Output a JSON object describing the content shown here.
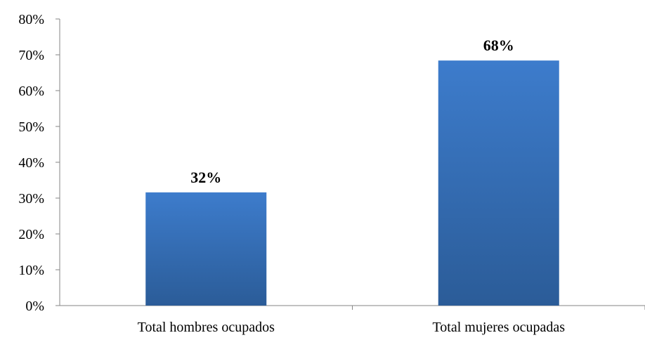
{
  "chart_data": {
    "type": "bar",
    "categories": [
      "Total hombres ocupados",
      "Total mujeres ocupadas"
    ],
    "values": [
      31.6,
      68.4
    ],
    "data_labels": [
      "32%",
      "68%"
    ],
    "title": "",
    "xlabel": "",
    "ylabel": "",
    "ylim": [
      0,
      80
    ],
    "y_ticks": [
      0,
      10,
      20,
      30,
      40,
      50,
      60,
      70,
      80
    ],
    "y_tick_labels": [
      "0%",
      "10%",
      "20%",
      "30%",
      "40%",
      "50%",
      "60%",
      "70%",
      "80%"
    ],
    "grid": false,
    "legend": "none",
    "colors": {
      "bar_top": "#3d7ccc",
      "bar_bottom": "#2b5c98",
      "axis": "#868686"
    }
  }
}
